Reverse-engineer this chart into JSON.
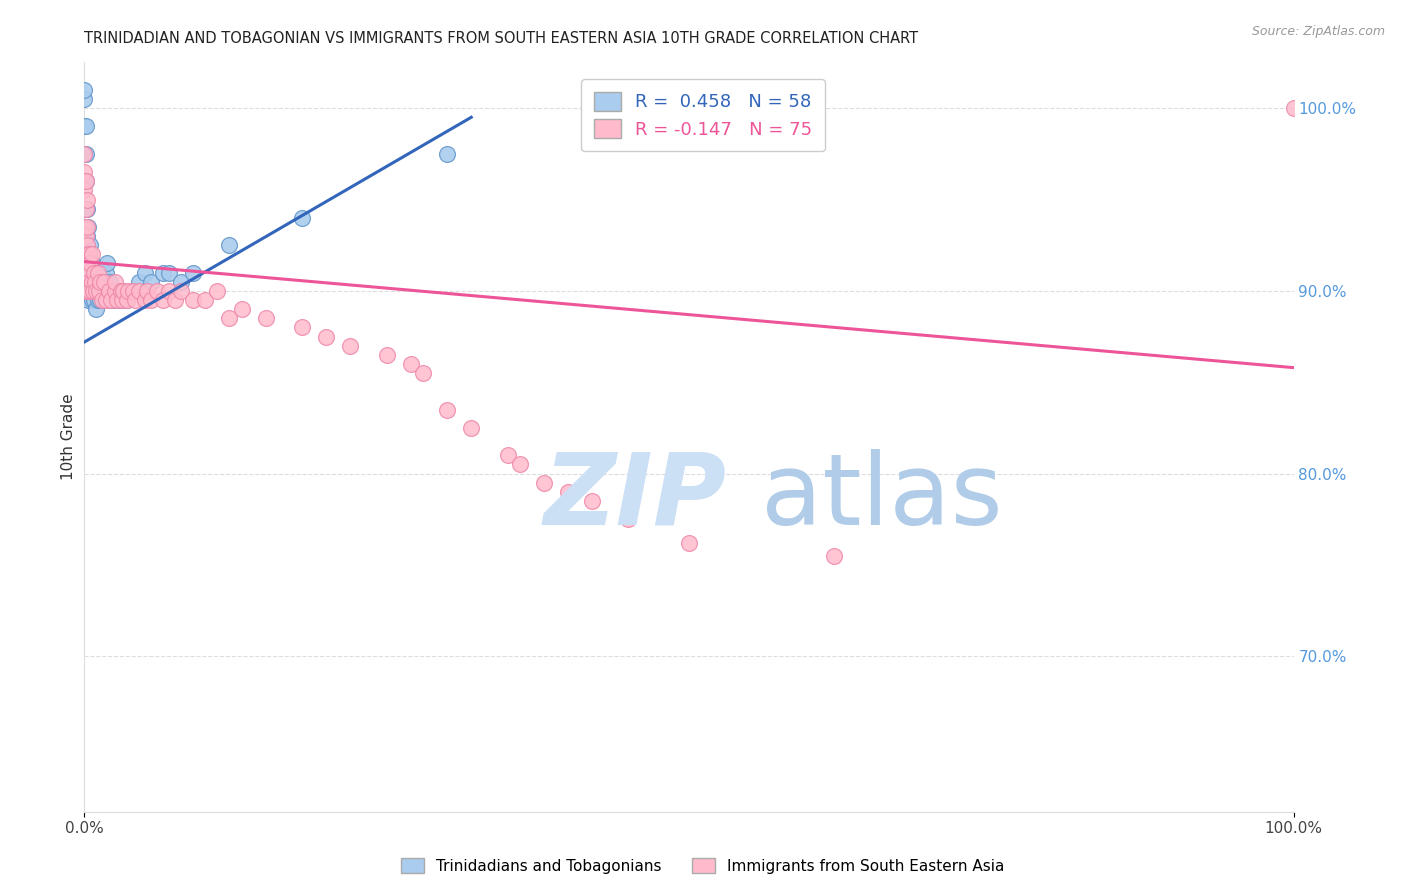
{
  "title": "TRINIDADIAN AND TOBAGONIAN VS IMMIGRANTS FROM SOUTH EASTERN ASIA 10TH GRADE CORRELATION CHART",
  "source_text": "Source: ZipAtlas.com",
  "ylabel": "10th Grade",
  "legend_label1": "R =  0.458   N = 58",
  "legend_label2": "R = -0.147   N = 75",
  "legend_color1": "#aaccee",
  "legend_color2": "#ffbbcc",
  "trendline1_color": "#3366bb",
  "trendline2_color": "#ee5599",
  "scatter1_color": "#aaccee",
  "scatter2_color": "#ffbbcc",
  "scatter1_edge": "#6699cc",
  "scatter2_edge": "#ee88aa",
  "watermark_zip_color": "#cce0f5",
  "watermark_atlas_color": "#b0cce8",
  "grid_color": "#dddddd",
  "title_color": "#222222",
  "source_color": "#999999",
  "right_axis_color": "#5599dd",
  "bottom_legend_label1": "Trinidadians and Tobagonians",
  "bottom_legend_label2": "Immigrants from South Eastern Asia",
  "xlim": [
    0.0,
    1.0
  ],
  "ylim": [
    0.615,
    1.025
  ],
  "blue_trendline_x": [
    0.0,
    0.32
  ],
  "blue_trendline_y": [
    0.872,
    0.995
  ],
  "pink_trendline_x": [
    0.0,
    1.0
  ],
  "pink_trendline_y": [
    0.916,
    0.858
  ],
  "blue_x": [
    0.0,
    0.0,
    0.0,
    0.0,
    0.001,
    0.001,
    0.001,
    0.001,
    0.001,
    0.001,
    0.001,
    0.002,
    0.002,
    0.002,
    0.002,
    0.003,
    0.003,
    0.003,
    0.004,
    0.004,
    0.005,
    0.005,
    0.006,
    0.006,
    0.007,
    0.008,
    0.009,
    0.01,
    0.01,
    0.011,
    0.012,
    0.013,
    0.014,
    0.015,
    0.016,
    0.017,
    0.018,
    0.019,
    0.02,
    0.021,
    0.022,
    0.023,
    0.025,
    0.027,
    0.03,
    0.032,
    0.035,
    0.04,
    0.045,
    0.05,
    0.055,
    0.065,
    0.07,
    0.08,
    0.09,
    0.12,
    0.18,
    0.3
  ],
  "blue_y": [
    0.975,
    0.99,
    1.005,
    1.01,
    0.91,
    0.925,
    0.935,
    0.945,
    0.96,
    0.975,
    0.99,
    0.905,
    0.915,
    0.93,
    0.945,
    0.895,
    0.91,
    0.935,
    0.9,
    0.92,
    0.905,
    0.925,
    0.895,
    0.915,
    0.905,
    0.895,
    0.905,
    0.89,
    0.91,
    0.895,
    0.905,
    0.895,
    0.91,
    0.9,
    0.905,
    0.895,
    0.91,
    0.915,
    0.9,
    0.905,
    0.895,
    0.9,
    0.895,
    0.9,
    0.895,
    0.9,
    0.895,
    0.9,
    0.905,
    0.91,
    0.905,
    0.91,
    0.91,
    0.905,
    0.91,
    0.925,
    0.94,
    0.975
  ],
  "pink_x": [
    0.0,
    0.0,
    0.0,
    0.0,
    0.001,
    0.001,
    0.001,
    0.001,
    0.001,
    0.002,
    0.002,
    0.002,
    0.002,
    0.003,
    0.003,
    0.004,
    0.004,
    0.005,
    0.005,
    0.006,
    0.006,
    0.007,
    0.008,
    0.009,
    0.01,
    0.011,
    0.012,
    0.013,
    0.015,
    0.016,
    0.018,
    0.02,
    0.022,
    0.025,
    0.025,
    0.027,
    0.03,
    0.031,
    0.032,
    0.035,
    0.036,
    0.04,
    0.042,
    0.045,
    0.05,
    0.052,
    0.055,
    0.06,
    0.065,
    0.07,
    0.075,
    0.08,
    0.09,
    0.1,
    0.11,
    0.12,
    0.13,
    0.15,
    0.18,
    0.2,
    0.22,
    0.25,
    0.27,
    0.28,
    0.3,
    0.32,
    0.35,
    0.36,
    0.38,
    0.4,
    0.42,
    0.45,
    0.5,
    0.62,
    1.0
  ],
  "pink_y": [
    0.935,
    0.955,
    0.965,
    0.975,
    0.9,
    0.915,
    0.93,
    0.945,
    0.96,
    0.91,
    0.925,
    0.935,
    0.95,
    0.9,
    0.92,
    0.905,
    0.92,
    0.9,
    0.915,
    0.905,
    0.92,
    0.9,
    0.91,
    0.905,
    0.9,
    0.91,
    0.9,
    0.905,
    0.895,
    0.905,
    0.895,
    0.9,
    0.895,
    0.9,
    0.905,
    0.895,
    0.9,
    0.895,
    0.9,
    0.895,
    0.9,
    0.9,
    0.895,
    0.9,
    0.895,
    0.9,
    0.895,
    0.9,
    0.895,
    0.9,
    0.895,
    0.9,
    0.895,
    0.895,
    0.9,
    0.885,
    0.89,
    0.885,
    0.88,
    0.875,
    0.87,
    0.865,
    0.86,
    0.855,
    0.835,
    0.825,
    0.81,
    0.805,
    0.795,
    0.79,
    0.785,
    0.775,
    0.762,
    0.755,
    1.0
  ]
}
